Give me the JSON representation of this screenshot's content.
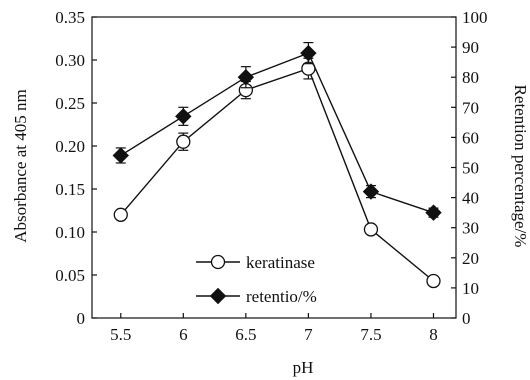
{
  "chart_data": {
    "type": "line",
    "title": "",
    "xlabel": "pH",
    "ylabel_left": "Absorbance at 405 nm",
    "ylabel_right": "Retention percentage/%",
    "x": [
      5.5,
      6,
      6.5,
      7,
      7.5,
      8
    ],
    "x_tick_labels": [
      "5.5",
      "6",
      "6.5",
      "7",
      "7.5",
      "8"
    ],
    "xlim": [
      5.27,
      8.18
    ],
    "ylim_left": [
      0,
      0.35
    ],
    "ylim_right": [
      0,
      100
    ],
    "y_left_ticks": [
      "0",
      "0.05",
      "0.10",
      "0.15",
      "0.20",
      "0.25",
      "0.30",
      "0.35"
    ],
    "y_right_ticks": [
      "0",
      "10",
      "20",
      "30",
      "40",
      "50",
      "60",
      "70",
      "80",
      "90",
      "100"
    ],
    "grid": false,
    "legend_position": "center-left",
    "series": [
      {
        "name": "keratinase",
        "axis": "left",
        "marker": "open-circle",
        "color": "#111111",
        "values": [
          0.12,
          0.205,
          0.265,
          0.29,
          0.103,
          0.043
        ],
        "errors": [
          0.002,
          0.01,
          0.01,
          0.012,
          0.003,
          0.002
        ]
      },
      {
        "name": "retentio/%",
        "axis": "right",
        "marker": "filled-diamond",
        "color": "#111111",
        "values": [
          54,
          67,
          80,
          88,
          42,
          35
        ],
        "errors": [
          2.5,
          3.0,
          3.5,
          3.5,
          2.0,
          1.5
        ]
      }
    ]
  }
}
